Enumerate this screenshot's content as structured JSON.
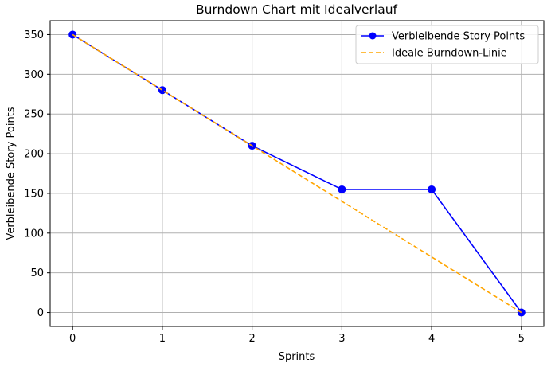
{
  "chart_data": {
    "type": "line",
    "title": "Burndown Chart mit Idealverlauf",
    "xlabel": "Sprints",
    "ylabel": "Verbleibende Story Points",
    "x": [
      0,
      1,
      2,
      3,
      4,
      5
    ],
    "xlim": [
      -0.25,
      5.25
    ],
    "ylim": [
      -17.5,
      367.5
    ],
    "xticks": [
      0,
      1,
      2,
      3,
      4,
      5
    ],
    "yticks": [
      0,
      50,
      100,
      150,
      200,
      250,
      300,
      350
    ],
    "grid": true,
    "legend_position": "top-right",
    "series": [
      {
        "name": "Verbleibende Story Points",
        "values": [
          350,
          280,
          210,
          155,
          155,
          0
        ],
        "color": "#0000ff",
        "style": "solid",
        "marker": "circle"
      },
      {
        "name": "Ideale Burndown-Linie",
        "values": [
          350,
          280,
          210,
          140,
          70,
          0
        ],
        "color": "#ffa500",
        "style": "dashed",
        "marker": "none"
      }
    ]
  }
}
